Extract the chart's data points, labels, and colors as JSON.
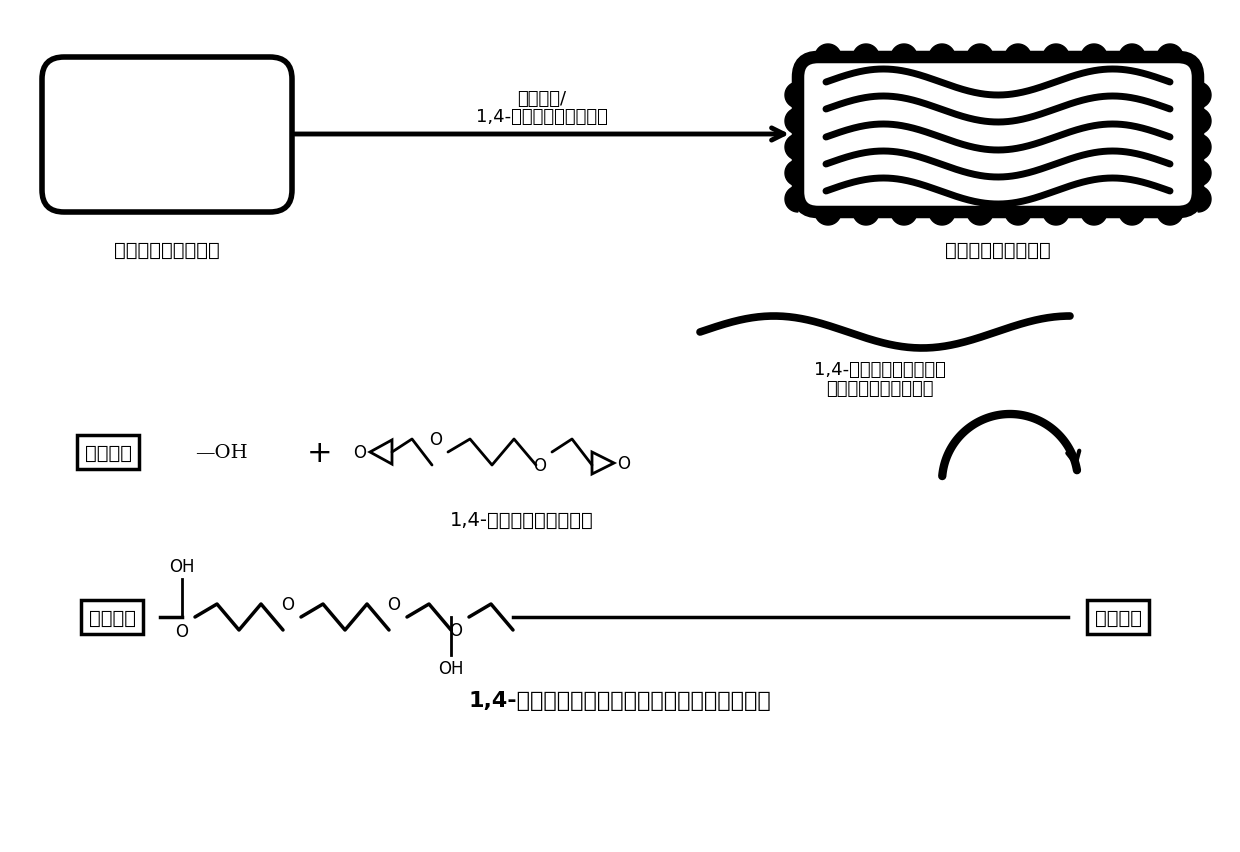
{
  "bg_color": "#ffffff",
  "label_left_box": "戴二醛交联的心包膚",
  "label_right_box": "水凝胶复合的心包膚",
  "arrow_label1": "透明质酸/",
  "arrow_label2": "1,4-丁二醇二缩水甘油醚",
  "wave_label1": "1,4-丁二醇二缩水甘油醚",
  "wave_label2": "交联的透明质酸水凝胶",
  "ha_text": "透明质酸",
  "bdde_name": "1,4-丁二醇二缩水甘油醚",
  "ha_left_text": "透明质酸",
  "ha_right_text": "透明质酸",
  "product_name": "1,4-丁二醇二缩水甘油醚交联的透明质酸水凝胶"
}
